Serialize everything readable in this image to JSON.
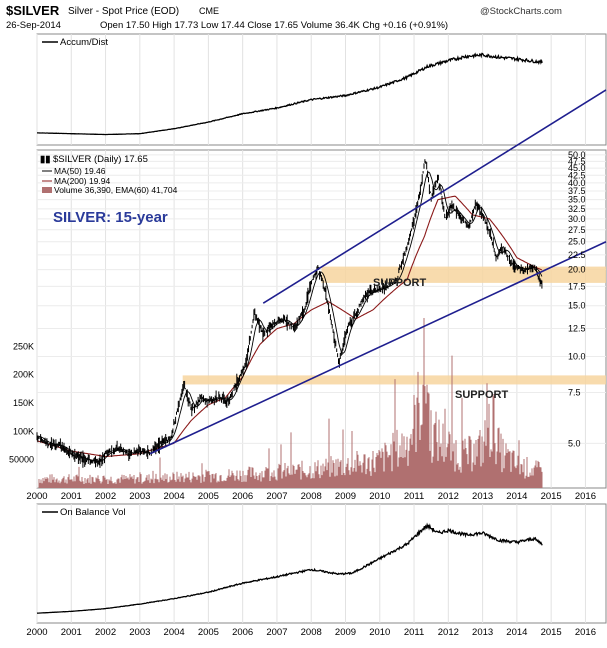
{
  "header": {
    "symbol": "$SILVER",
    "desc": "Silver - Spot Price (EOD)",
    "exchange": "CME",
    "watermark": "@StockCharts.com",
    "date": "26-Sep-2014",
    "quote": "Open 17.50  High 17.73  Low 17.44  Close 17.65  Volume 36.4K  Chg +0.16 (+0.91%)"
  },
  "panels": {
    "top_label": "Accum/Dist",
    "bottom_label": "On Balance Vol"
  },
  "legend": {
    "main": "$SILVER (Daily) 17.65",
    "ma50": "MA(50) 19.46",
    "ma200": "MA(200) 19.94",
    "volume": "Volume 36,390, EMA(60) 41,704"
  },
  "annotations": {
    "title": "SILVER: 15-year",
    "support_upper": "SUPPORT",
    "support_lower": "SUPPORT"
  },
  "colors": {
    "price": "#000000",
    "ma50": "#000000",
    "ma200": "#8b1a1a",
    "volume": "#b07070",
    "trendline": "#1f1f8f",
    "support_band": "#f7d59f",
    "annotation_text": "#2a3a9a"
  },
  "chart_data": {
    "type": "line",
    "scale": "log",
    "y_axis_ticks": [
      "50.0",
      "47.5",
      "45.0",
      "42.5",
      "40.0",
      "37.5",
      "35.0",
      "32.5",
      "30.0",
      "27.5",
      "25.0",
      "22.5",
      "20.0",
      "17.5",
      "15.0",
      "12.5",
      "10.0",
      "7.5",
      "5.0"
    ],
    "y_axis_tick_values": [
      50,
      47.5,
      45,
      42.5,
      40,
      37.5,
      35,
      32.5,
      30,
      27.5,
      25,
      22.5,
      20,
      17.5,
      15,
      12.5,
      10,
      7.5,
      5
    ],
    "volume_axis_ticks": [
      "250K",
      "200K",
      "150K",
      "100K",
      "50000"
    ],
    "volume_axis_tick_values": [
      250000,
      200000,
      150000,
      100000,
      50000
    ],
    "x_axis_ticks": [
      "2000",
      "2001",
      "2002",
      "2003",
      "2004",
      "2005",
      "2006",
      "2007",
      "2008",
      "2009",
      "2010",
      "2011",
      "2012",
      "2013",
      "2014",
      "2015",
      "2016"
    ],
    "x_range": [
      2000,
      2016.6
    ],
    "y_range": [
      3.5,
      52
    ],
    "price_series": {
      "name": "$SILVER (Daily)",
      "x": [
        2000,
        2000.3,
        2000.7,
        2001,
        2001.4,
        2001.8,
        2002,
        2002.4,
        2002.7,
        2003,
        2003.3,
        2003.6,
        2003.9,
        2004.1,
        2004.3,
        2004.5,
        2004.8,
        2005,
        2005.3,
        2005.6,
        2005.9,
        2006.1,
        2006.35,
        2006.6,
        2006.9,
        2007.2,
        2007.5,
        2007.8,
        2008.0,
        2008.2,
        2008.4,
        2008.6,
        2008.8,
        2008.9,
        2009.1,
        2009.3,
        2009.6,
        2009.9,
        2010.2,
        2010.5,
        2010.8,
        2011.0,
        2011.2,
        2011.32,
        2011.5,
        2011.7,
        2011.9,
        2012.1,
        2012.3,
        2012.6,
        2012.8,
        2013.0,
        2013.2,
        2013.4,
        2013.6,
        2013.9,
        2014.2,
        2014.5,
        2014.74
      ],
      "y": [
        5.3,
        5.0,
        4.9,
        4.6,
        4.4,
        4.3,
        4.6,
        4.8,
        4.6,
        4.7,
        4.6,
        5.0,
        5.2,
        6.5,
        8.0,
        6.5,
        7.2,
        7.0,
        7.2,
        7.0,
        8.5,
        9.5,
        14.0,
        12.0,
        13.0,
        13.5,
        12.5,
        14.5,
        18.0,
        20.5,
        17.0,
        13.0,
        9.5,
        10.5,
        13.0,
        14.0,
        16.5,
        17.0,
        17.5,
        18.5,
        24.0,
        30.0,
        38.0,
        48.5,
        35.0,
        42.0,
        30.0,
        33.0,
        31.0,
        28.0,
        34.0,
        31.0,
        27.0,
        22.0,
        24.0,
        20.5,
        20.0,
        20.5,
        17.65
      ]
    },
    "ma200_series": {
      "name": "MA(200)",
      "x": [
        2000,
        2001,
        2002,
        2003,
        2004,
        2004.5,
        2005,
        2005.5,
        2006,
        2006.5,
        2007,
        2007.5,
        2008,
        2008.5,
        2008.9,
        2009.3,
        2009.8,
        2010.3,
        2010.8,
        2011.3,
        2011.7,
        2012.2,
        2012.7,
        2013.2,
        2013.6,
        2014.0,
        2014.5,
        2014.74
      ],
      "y": [
        5.1,
        4.7,
        4.5,
        4.6,
        5.0,
        6.0,
        6.8,
        7.2,
        8.5,
        11.0,
        12.5,
        13.0,
        14.5,
        15.5,
        14.5,
        13.5,
        14.5,
        16.5,
        18.5,
        26.0,
        35.0,
        36.0,
        31.0,
        30.0,
        26.0,
        22.0,
        20.5,
        19.94
      ]
    },
    "trendlines": [
      {
        "name": "upper",
        "x": [
          2006.6,
          2016.6
        ],
        "y": [
          15.3,
          84.0
        ]
      },
      {
        "name": "lower",
        "x": [
          2003.3,
          2016.6
        ],
        "y": [
          4.6,
          25.0
        ]
      }
    ],
    "support_bands": [
      {
        "label": "SUPPORT",
        "x_start": 2008.3,
        "y_low": 18.0,
        "y_high": 20.5
      },
      {
        "label": "SUPPORT",
        "x_start": 2004.25,
        "y_low": 8.0,
        "y_high": 8.6
      }
    ],
    "volume_series": {
      "name": "Volume",
      "x": [
        2000,
        2003,
        2006,
        2008,
        2010,
        2010.8,
        2011.0,
        2011.2,
        2011.35,
        2011.5,
        2012,
        2012.5,
        2013,
        2013.3,
        2013.5,
        2014,
        2014.74
      ],
      "y": [
        20000,
        20000,
        30000,
        40000,
        60000,
        100000,
        140000,
        200000,
        260000,
        120000,
        90000,
        70000,
        90000,
        150000,
        80000,
        50000,
        36390
      ]
    },
    "accum_dist_series": {
      "name": "Accum/Dist",
      "x": [
        2000,
        2001,
        2002,
        2003,
        2004,
        2005,
        2006,
        2007,
        2008,
        2009,
        2010,
        2010.8,
        2011.4,
        2012,
        2012.5,
        2013,
        2013.5,
        2014,
        2014.74
      ],
      "y": [
        0.05,
        0.04,
        0.03,
        0.04,
        0.1,
        0.18,
        0.28,
        0.35,
        0.45,
        0.5,
        0.6,
        0.72,
        0.85,
        0.92,
        0.97,
        0.99,
        0.96,
        0.94,
        0.9
      ]
    },
    "obv_series": {
      "name": "On Balance Vol",
      "x": [
        2000,
        2001,
        2002,
        2003,
        2004,
        2005,
        2006,
        2007,
        2008,
        2008.8,
        2009.2,
        2010,
        2010.8,
        2011.3,
        2011.4,
        2011.7,
        2012,
        2012.5,
        2013,
        2013.5,
        2014,
        2014.5,
        2014.74
      ],
      "y": [
        0.02,
        0.04,
        0.07,
        0.12,
        0.18,
        0.25,
        0.35,
        0.42,
        0.5,
        0.45,
        0.46,
        0.62,
        0.78,
        0.96,
        0.98,
        0.9,
        0.93,
        0.88,
        0.9,
        0.82,
        0.8,
        0.84,
        0.78
      ]
    }
  }
}
